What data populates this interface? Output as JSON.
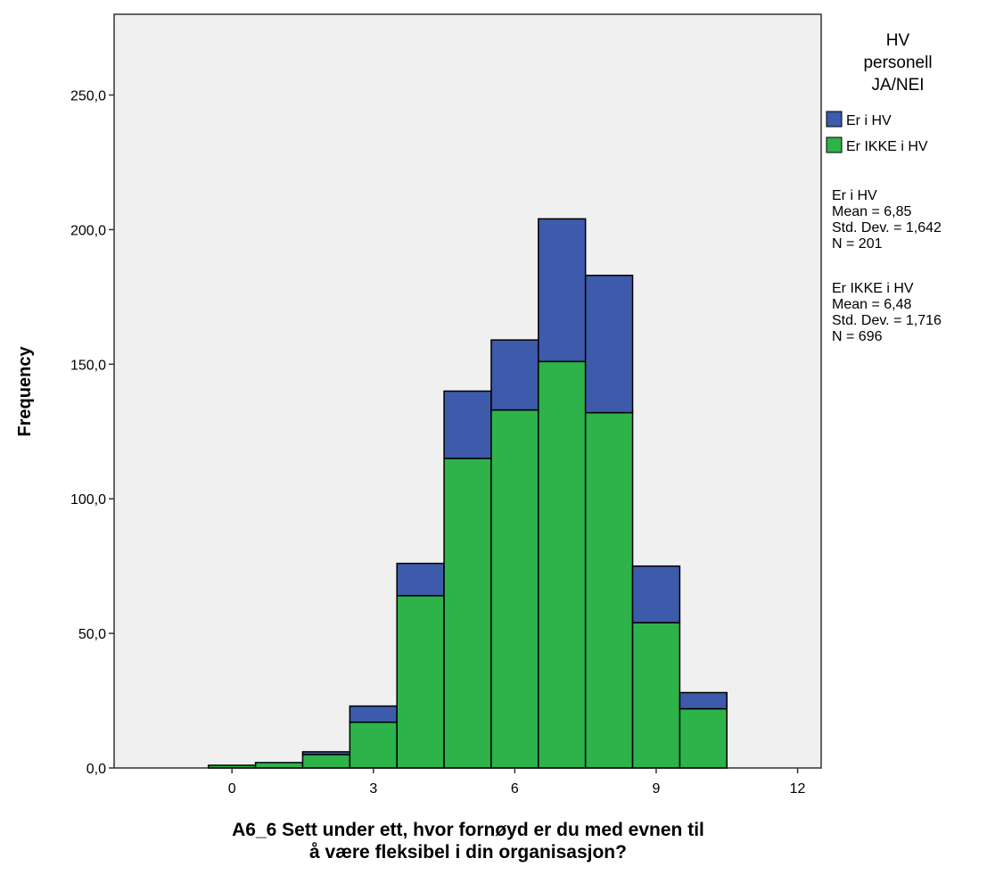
{
  "chart_data": {
    "type": "bar",
    "subtype": "stacked-histogram",
    "ylabel": "Frequency",
    "xlabel_lines": [
      "A6_6 Sett under ett, hvor fornøyd er du med evnen til",
      "å være fleksibel i din organisasjon?"
    ],
    "xlim": [
      -2.5,
      12.5
    ],
    "ylim": [
      0,
      280
    ],
    "x_ticks": [
      0,
      3,
      6,
      9,
      12
    ],
    "x_tick_labels": [
      "0",
      "3",
      "6",
      "9",
      "12"
    ],
    "y_ticks": [
      0,
      50,
      100,
      150,
      200,
      250
    ],
    "y_tick_labels": [
      "0,0",
      "50,0",
      "100,0",
      "150,0",
      "200,0",
      "250,0"
    ],
    "bins": [
      0,
      1,
      2,
      3,
      4,
      5,
      6,
      7,
      8,
      9,
      10
    ],
    "bin_width": 1,
    "grid": false,
    "legend_position": "right",
    "background": "#f0f0f0",
    "series": [
      {
        "name": "Er IKKE i HV",
        "color": "#2db34a",
        "values": [
          1,
          2,
          5,
          17,
          64,
          115,
          133,
          151,
          132,
          54,
          22
        ]
      },
      {
        "name": "Er i HV",
        "color": "#3d5aab",
        "values": [
          0,
          0,
          1,
          6,
          12,
          25,
          26,
          53,
          51,
          21,
          6
        ]
      }
    ],
    "legend": {
      "title_lines": [
        "HV",
        "personell",
        "JA/NEI"
      ],
      "items": [
        {
          "label": "Er i HV",
          "color": "#3d5aab"
        },
        {
          "label": "Er IKKE i HV",
          "color": "#2db34a"
        }
      ]
    },
    "stats": [
      {
        "group": "Er i HV",
        "lines": [
          "Mean = 6,85",
          "Std. Dev. = 1,642",
          "N = 201"
        ]
      },
      {
        "group": "Er IKKE i HV",
        "lines": [
          "Mean = 6,48",
          "Std. Dev. = 1,716",
          "N = 696"
        ]
      }
    ]
  }
}
